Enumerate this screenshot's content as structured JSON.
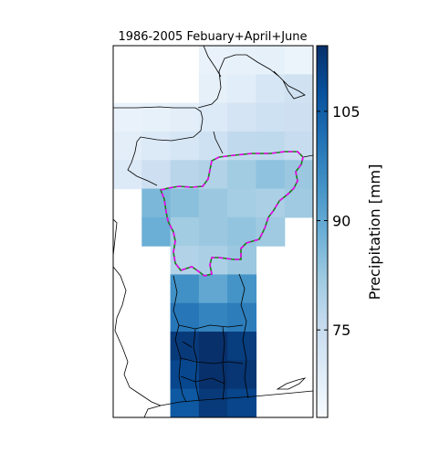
{
  "title": "1986-2005 Febuary+April+June",
  "colorbar": {
    "label": "Precipitation [mm]",
    "ticks": [
      75,
      90,
      105
    ],
    "range": [
      63,
      114
    ],
    "colors": [
      "#f7fbff",
      "#deebf7",
      "#c6dbef",
      "#9ecae1",
      "#6baed6",
      "#4292c6",
      "#2171b5",
      "#08519c",
      "#08306b"
    ]
  },
  "map": {
    "grid_columns": 7,
    "grid_rows": 13,
    "cells": [
      [
        null,
        null,
        null,
        66.5,
        67.0,
        67.5,
        66.0
      ],
      [
        null,
        null,
        null,
        67.5,
        68.5,
        71.5,
        73.0
      ],
      [
        66.5,
        67.0,
        68.0,
        70.0,
        72.0,
        73.5,
        74.0
      ],
      [
        68.0,
        70.0,
        71.5,
        73.5,
        76.5,
        77.0,
        75.5
      ],
      [
        70.0,
        74.0,
        78.0,
        79.0,
        81.5,
        84.0,
        82.5
      ],
      [
        null,
        86.5,
        84.5,
        82.5,
        81.0,
        80.0,
        82.0
      ],
      [
        null,
        88.5,
        81.5,
        82.5,
        83.5,
        82.0,
        null
      ],
      [
        null,
        null,
        79.0,
        80.0,
        82.5,
        null,
        null
      ],
      [
        null,
        null,
        95.0,
        90.0,
        94.5,
        null,
        null
      ],
      [
        null,
        null,
        100.0,
        97.5,
        99.0,
        null,
        null
      ],
      [
        null,
        null,
        112.0,
        115.0,
        111.5,
        null,
        null
      ],
      [
        null,
        null,
        109.5,
        116.5,
        113.0,
        null,
        null
      ],
      [
        null,
        null,
        106.0,
        112.0,
        110.0,
        null,
        null
      ]
    ]
  }
}
